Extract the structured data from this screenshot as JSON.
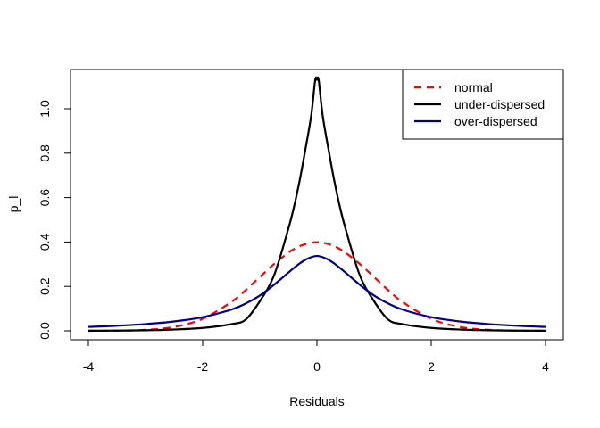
{
  "chart_data": {
    "type": "line",
    "title": "",
    "xlabel": "Residuals",
    "ylabel": "p_l",
    "xlim": [
      -4,
      4
    ],
    "ylim": [
      0,
      1.13
    ],
    "xticks": [
      "-4",
      "-2",
      "0",
      "2",
      "4"
    ],
    "xtick_values": [
      -4,
      -2,
      0,
      2,
      4
    ],
    "yticks": [
      "0.0",
      "0.2",
      "0.4",
      "0.6",
      "0.8",
      "1.0"
    ],
    "ytick_values": [
      0,
      0.2,
      0.4,
      0.6,
      0.8,
      1.0
    ],
    "grid": false,
    "legend_position": "top-right",
    "x": [
      -4,
      -3.5,
      -3,
      -2.5,
      -2,
      -1.5,
      -1.25,
      -1,
      -0.75,
      -0.5,
      -0.4,
      -0.3,
      -0.2,
      -0.1,
      -0.03,
      0,
      0.03,
      0.1,
      0.2,
      0.3,
      0.4,
      0.5,
      0.75,
      1,
      1.25,
      1.5,
      2,
      2.5,
      3,
      3.5,
      4
    ],
    "series": [
      {
        "name": "normal",
        "color": "#ff0000",
        "style": "dashed",
        "values": [
          0.0001,
          0.0009,
          0.0044,
          0.0175,
          0.054,
          0.1295,
          0.1826,
          0.242,
          0.3011,
          0.3521,
          0.3683,
          0.3814,
          0.391,
          0.397,
          0.3988,
          0.3989,
          0.3988,
          0.397,
          0.391,
          0.3814,
          0.3683,
          0.3521,
          0.3011,
          0.242,
          0.1826,
          0.1295,
          0.054,
          0.0175,
          0.0044,
          0.0009,
          0.0001
        ]
      },
      {
        "name": "under-dispersed",
        "color": "#000000",
        "style": "solid",
        "values": [
          0.0004,
          0.001,
          0.0025,
          0.006,
          0.013,
          0.03,
          0.05,
          0.133,
          0.25,
          0.46,
          0.56,
          0.68,
          0.82,
          0.97,
          1.13,
          1.13,
          1.13,
          0.97,
          0.82,
          0.68,
          0.56,
          0.46,
          0.25,
          0.133,
          0.05,
          0.03,
          0.013,
          0.006,
          0.0025,
          0.001,
          0.0004
        ]
      },
      {
        "name": "over-dispersed",
        "color": "#00008b",
        "style": "solid",
        "values": [
          0.0178,
          0.0228,
          0.0303,
          0.0421,
          0.0615,
          0.0954,
          0.1227,
          0.159,
          0.2074,
          0.2623,
          0.2835,
          0.3036,
          0.3203,
          0.3318,
          0.3367,
          0.3368,
          0.3367,
          0.3318,
          0.3203,
          0.3036,
          0.2835,
          0.2623,
          0.2074,
          0.159,
          0.1227,
          0.0954,
          0.0615,
          0.0421,
          0.0303,
          0.0228,
          0.0178
        ]
      }
    ]
  }
}
